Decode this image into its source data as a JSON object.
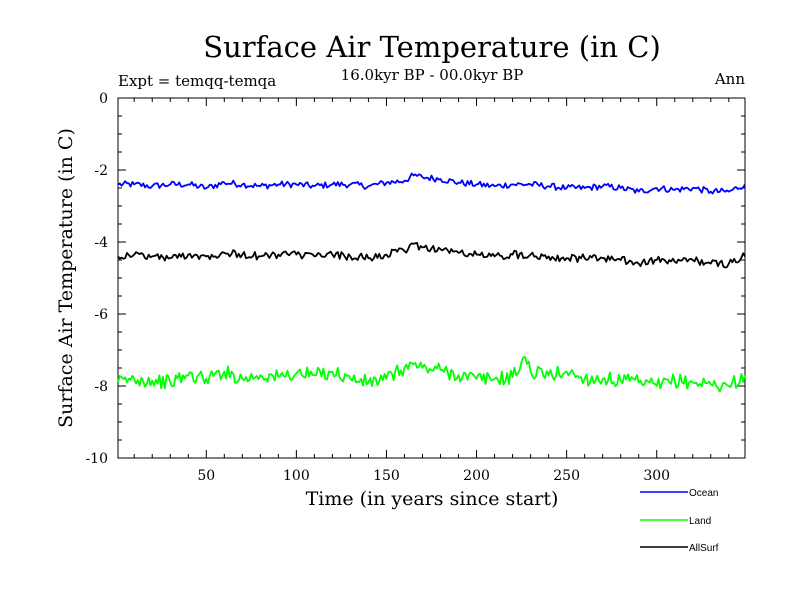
{
  "chart_data": {
    "type": "line",
    "title": "Surface Air Temperature (in C)",
    "subtitle": "16.0kyr BP - 00.0kyr BP",
    "experiment_label": "Expt = temqq-temqa",
    "season_label": "Ann",
    "xlabel": "Time (in years since start)",
    "ylabel": "Surface Air Temperature (in C)",
    "xlim": [
      1,
      349
    ],
    "ylim": [
      -10,
      0
    ],
    "x_ticks": [
      50,
      100,
      150,
      200,
      250,
      300
    ],
    "x_tick_labels": [
      "50",
      "100",
      "150",
      "200",
      "250",
      "300"
    ],
    "y_ticks": [
      0,
      -2,
      -4,
      -6,
      -8,
      -10
    ],
    "y_tick_labels": [
      "0",
      "-2",
      "-4",
      "-6",
      "-8",
      "-10"
    ],
    "grid": false,
    "legend_position": "bottom-right outside",
    "series": [
      {
        "name": "Ocean",
        "color": "#0000ff",
        "x": [
          1,
          10,
          20,
          30,
          40,
          50,
          60,
          70,
          80,
          90,
          100,
          110,
          120,
          130,
          140,
          150,
          160,
          165,
          170,
          180,
          190,
          200,
          210,
          220,
          230,
          240,
          250,
          260,
          270,
          280,
          290,
          300,
          310,
          320,
          330,
          340,
          349
        ],
        "values": [
          -2.4,
          -2.4,
          -2.45,
          -2.4,
          -2.4,
          -2.5,
          -2.35,
          -2.4,
          -2.45,
          -2.4,
          -2.4,
          -2.45,
          -2.4,
          -2.4,
          -2.45,
          -2.35,
          -2.3,
          -2.15,
          -2.2,
          -2.25,
          -2.35,
          -2.4,
          -2.45,
          -2.4,
          -2.4,
          -2.45,
          -2.5,
          -2.5,
          -2.45,
          -2.5,
          -2.6,
          -2.5,
          -2.55,
          -2.5,
          -2.6,
          -2.6,
          -2.4
        ]
      },
      {
        "name": "Land",
        "color": "#00ff00",
        "x": [
          1,
          10,
          20,
          30,
          40,
          50,
          60,
          70,
          80,
          90,
          100,
          110,
          120,
          130,
          140,
          150,
          160,
          165,
          170,
          180,
          190,
          200,
          210,
          220,
          227,
          230,
          240,
          250,
          260,
          270,
          280,
          290,
          300,
          310,
          320,
          330,
          340,
          349
        ],
        "values": [
          -7.9,
          -7.8,
          -7.85,
          -7.9,
          -7.7,
          -7.8,
          -7.6,
          -7.8,
          -7.7,
          -7.75,
          -7.65,
          -7.7,
          -7.6,
          -7.8,
          -7.9,
          -7.8,
          -7.5,
          -7.4,
          -7.5,
          -7.55,
          -7.7,
          -7.8,
          -7.8,
          -7.75,
          -7.2,
          -7.6,
          -7.7,
          -7.6,
          -7.8,
          -7.8,
          -7.85,
          -7.9,
          -8.0,
          -7.85,
          -7.9,
          -7.95,
          -8.0,
          -7.7
        ]
      },
      {
        "name": "AllSurf",
        "color": "#000000",
        "x": [
          1,
          10,
          20,
          30,
          40,
          50,
          60,
          70,
          80,
          90,
          100,
          110,
          120,
          130,
          140,
          150,
          160,
          165,
          170,
          180,
          190,
          200,
          210,
          220,
          230,
          240,
          250,
          260,
          270,
          280,
          290,
          300,
          310,
          320,
          330,
          340,
          349
        ],
        "values": [
          -4.4,
          -4.35,
          -4.4,
          -4.45,
          -4.35,
          -4.4,
          -4.3,
          -4.35,
          -4.4,
          -4.35,
          -4.35,
          -4.4,
          -4.35,
          -4.4,
          -4.45,
          -4.35,
          -4.25,
          -4.05,
          -4.15,
          -4.2,
          -4.3,
          -4.35,
          -4.4,
          -4.35,
          -4.35,
          -4.4,
          -4.45,
          -4.45,
          -4.45,
          -4.5,
          -4.6,
          -4.5,
          -4.55,
          -4.5,
          -4.6,
          -4.6,
          -4.4
        ]
      }
    ]
  }
}
